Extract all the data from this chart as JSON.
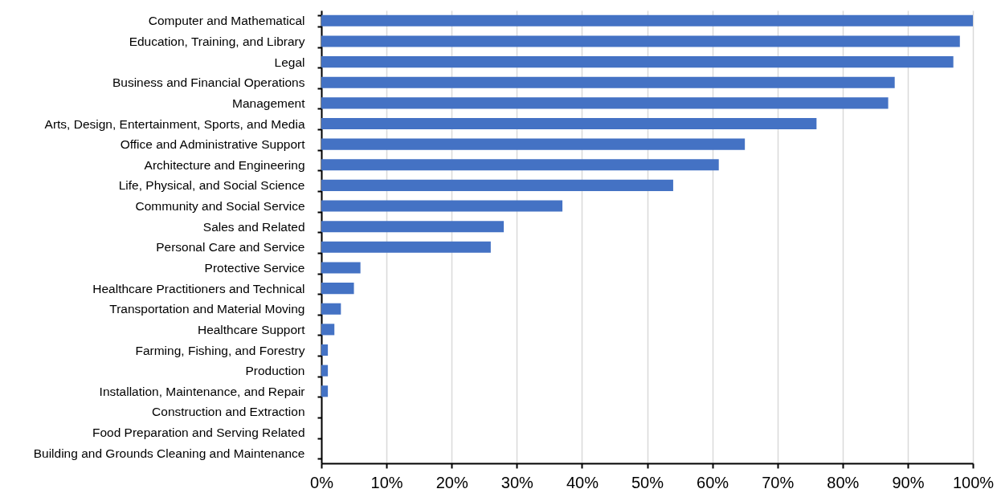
{
  "chart_data": {
    "type": "bar",
    "orientation": "horizontal",
    "categories": [
      "Computer and Mathematical",
      "Education, Training, and Library",
      "Legal",
      "Business and Financial Operations",
      "Management",
      "Arts, Design, Entertainment, Sports, and Media",
      "Office and Administrative Support",
      "Architecture and Engineering",
      "Life, Physical, and Social Science",
      "Community and Social Service",
      "Sales and Related",
      "Personal Care and Service",
      "Protective Service",
      "Healthcare Practitioners and Technical",
      "Transportation and Material Moving",
      "Healthcare Support",
      "Farming, Fishing, and Forestry",
      "Production",
      "Installation, Maintenance, and Repair",
      "Construction and Extraction",
      "Food Preparation and Serving Related",
      "Building and Grounds Cleaning and Maintenance"
    ],
    "values": [
      100,
      98,
      97,
      88,
      87,
      76,
      65,
      61,
      54,
      37,
      28,
      26,
      6,
      5,
      3,
      2,
      1,
      1,
      1,
      0,
      0,
      0
    ],
    "color": "#4472c4",
    "xlim": [
      0,
      100
    ],
    "xticks": [
      {
        "value": 0,
        "label": "0%"
      },
      {
        "value": 10,
        "label": "10%"
      },
      {
        "value": 20,
        "label": "20%"
      },
      {
        "value": 30,
        "label": "30%"
      },
      {
        "value": 40,
        "label": "40%"
      },
      {
        "value": 50,
        "label": "50%"
      },
      {
        "value": 60,
        "label": "60%"
      },
      {
        "value": 70,
        "label": "70%"
      },
      {
        "value": 80,
        "label": "80%"
      },
      {
        "value": 90,
        "label": "90%"
      },
      {
        "value": 100,
        "label": "100%"
      }
    ],
    "grid": "x"
  }
}
